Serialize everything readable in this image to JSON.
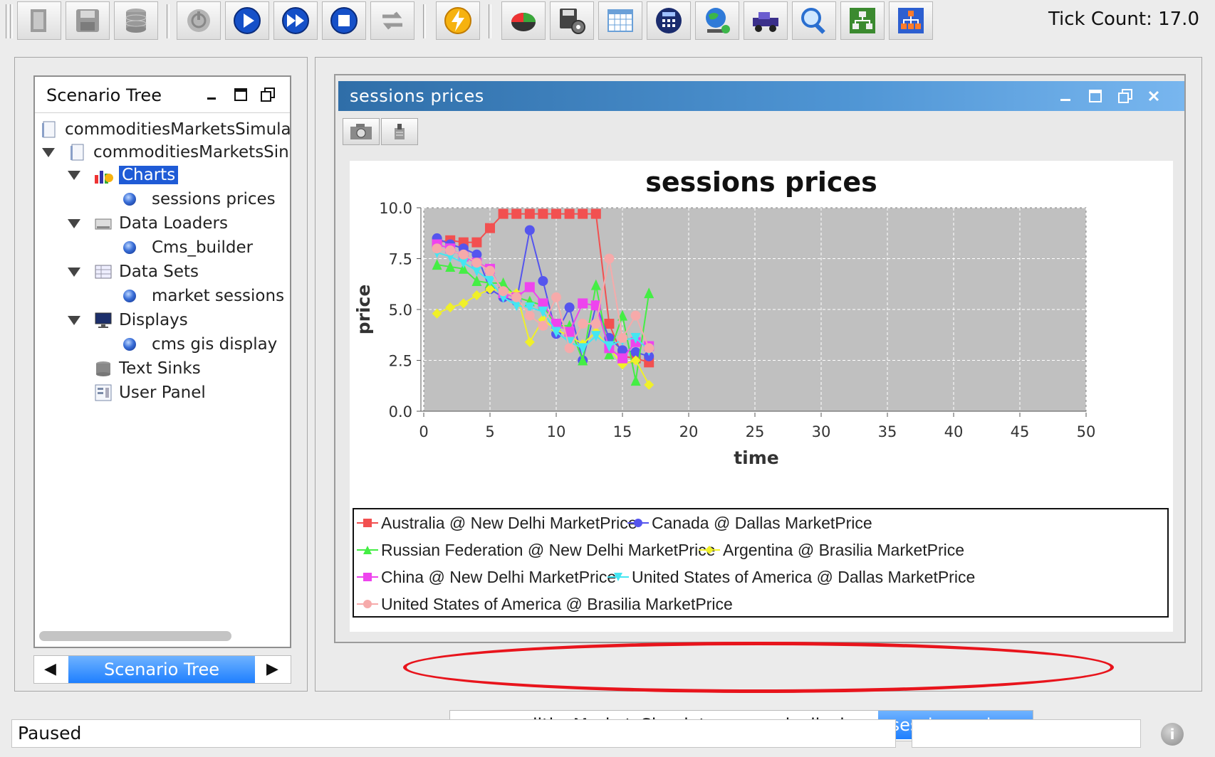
{
  "toolbar": {
    "tick_count": "Tick Count: 17.0",
    "buttons": [
      "open-icon",
      "save-icon",
      "database-icon",
      "power-icon",
      "play-icon",
      "fast-forward-icon",
      "stop-icon",
      "reset-icon",
      "lightning-icon",
      "chart-icon",
      "save-settings-icon",
      "calendar-grid-icon",
      "calculator-icon",
      "globe-icon",
      "vehicle-icon",
      "magnifier-icon",
      "network-icon",
      "org-chart-icon"
    ]
  },
  "scenario_tree": {
    "title": "Scenario Tree",
    "items": [
      {
        "label": "commoditiesMarketsSimula"
      },
      {
        "label": "commoditiesMarketsSin"
      },
      {
        "label": "Charts"
      },
      {
        "label": "sessions prices"
      },
      {
        "label": "Data Loaders"
      },
      {
        "label": "Cms_builder"
      },
      {
        "label": "Data Sets"
      },
      {
        "label": "market sessions"
      },
      {
        "label": "Displays"
      },
      {
        "label": "cms gis display"
      },
      {
        "label": "Text Sinks"
      },
      {
        "label": "User Panel"
      }
    ],
    "tab_label": "Scenario Tree"
  },
  "chart_window": {
    "title": "sessions prices"
  },
  "chart_data": {
    "type": "line",
    "title": "sessions prices",
    "xlabel": "time",
    "ylabel": "price",
    "xlim": [
      0,
      50
    ],
    "ylim": [
      0,
      10
    ],
    "x_ticks": [
      "0",
      "5",
      "10",
      "15",
      "20",
      "25",
      "30",
      "35",
      "40",
      "45",
      "50"
    ],
    "y_ticks": [
      "0.0",
      "2.5",
      "5.0",
      "7.5",
      "10.0"
    ],
    "grid": true,
    "legend_position": "bottom",
    "series": [
      {
        "name": "Australia @ New Delhi MarketPrice",
        "color": "#f25050",
        "marker": "square",
        "x": [
          1,
          2,
          3,
          4,
          5,
          6,
          7,
          8,
          9,
          10,
          11,
          12,
          13,
          14,
          15,
          16,
          17
        ],
        "y": [
          8.3,
          8.4,
          8.3,
          8.3,
          9.0,
          9.7,
          9.7,
          9.7,
          9.7,
          9.7,
          9.7,
          9.7,
          9.7,
          4.3,
          2.7,
          2.6,
          2.4
        ]
      },
      {
        "name": "Canada @ Dallas MarketPrice",
        "color": "#5555ee",
        "marker": "circle",
        "x": [
          1,
          2,
          3,
          4,
          5,
          6,
          7,
          8,
          9,
          10,
          11,
          12,
          13,
          14,
          15,
          16,
          17
        ],
        "y": [
          8.5,
          8.2,
          8.0,
          7.7,
          6.0,
          5.6,
          5.4,
          8.9,
          6.4,
          3.8,
          5.1,
          2.5,
          5.2,
          3.6,
          3.0,
          2.9,
          2.7
        ]
      },
      {
        "name": "Russian Federation @ New Delhi MarketPrice",
        "color": "#44ee44",
        "marker": "triangle-up",
        "x": [
          1,
          2,
          3,
          4,
          5,
          6,
          7,
          8,
          9,
          10,
          11,
          12,
          13,
          14,
          15,
          16,
          17
        ],
        "y": [
          7.2,
          7.1,
          7.0,
          6.4,
          6.3,
          6.3,
          5.6,
          5.4,
          5.2,
          4.2,
          4.2,
          2.5,
          6.2,
          2.8,
          4.7,
          1.5,
          5.8
        ]
      },
      {
        "name": "Argentina @ Brasilia MarketPrice",
        "color": "#f0f028",
        "marker": "diamond",
        "x": [
          1,
          2,
          3,
          4,
          5,
          6,
          7,
          8,
          9,
          10,
          11,
          12,
          13,
          14,
          15,
          16,
          17
        ],
        "y": [
          4.8,
          5.1,
          5.3,
          5.7,
          6.0,
          5.9,
          5.8,
          3.4,
          4.5,
          4.0,
          3.7,
          3.3,
          3.9,
          3.1,
          2.3,
          2.5,
          1.3
        ]
      },
      {
        "name": "China @ New Delhi MarketPrice",
        "color": "#ee44ee",
        "marker": "square",
        "x": [
          1,
          2,
          3,
          4,
          5,
          6,
          7,
          8,
          9,
          10,
          11,
          12,
          13,
          14,
          15,
          16,
          17
        ],
        "y": [
          8.2,
          8.0,
          7.6,
          7.3,
          7.0,
          5.8,
          5.6,
          6.1,
          5.3,
          4.3,
          3.9,
          5.3,
          5.2,
          3.1,
          2.6,
          3.4,
          3.2
        ]
      },
      {
        "name": "United States of America @ Dallas MarketPrice",
        "color": "#44e6f2",
        "marker": "triangle-down",
        "x": [
          1,
          2,
          3,
          4,
          5,
          6,
          7,
          8,
          9,
          10,
          11,
          12,
          13,
          14,
          15,
          16,
          17
        ],
        "y": [
          7.8,
          7.6,
          7.3,
          6.9,
          6.4,
          5.6,
          5.2,
          5.1,
          4.9,
          3.9,
          3.4,
          3.1,
          3.7,
          3.2,
          3.5,
          3.6,
          3.0
        ]
      },
      {
        "name": "United States of America @ Brasilia MarketPrice",
        "color": "#f6aaaa",
        "marker": "circle",
        "x": [
          1,
          2,
          3,
          4,
          5,
          6,
          7,
          8,
          9,
          10,
          11,
          12,
          13,
          14,
          15,
          16,
          17
        ],
        "y": [
          8.0,
          7.9,
          7.7,
          7.3,
          6.9,
          5.9,
          5.6,
          4.7,
          4.2,
          5.6,
          3.1,
          4.3,
          4.3,
          7.5,
          3.6,
          4.7,
          3.1
        ]
      }
    ]
  },
  "document_tabs": [
    {
      "label": "commoditiesMarketsSimulator: cms gis display",
      "active": false
    },
    {
      "label": "sessions prices",
      "active": true
    }
  ],
  "status": {
    "text": "Paused",
    "info": "i"
  }
}
